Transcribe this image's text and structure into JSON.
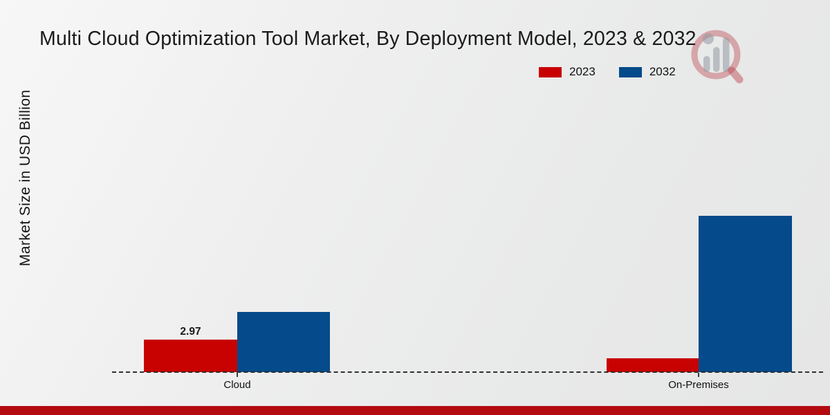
{
  "title": "Multi Cloud Optimization Tool Market, By Deployment Model, 2023 & 2032",
  "y_axis_label": "Market Size in USD Billion",
  "chart_data": {
    "type": "bar",
    "title": "Multi Cloud Optimization Tool Market, By Deployment Model, 2023 & 2032",
    "categories": [
      "Cloud",
      "On-Premises"
    ],
    "series": [
      {
        "name": "2023",
        "color": "#c80101",
        "values": [
          2.97,
          1.25
        ]
      },
      {
        "name": "2032",
        "color": "#054a8a",
        "values": [
          5.5,
          14.3
        ]
      }
    ],
    "ylabel": "Market Size in USD Billion",
    "xlabel": "",
    "ylim": [
      0,
      15
    ],
    "grid": "off",
    "baseline_style": "dashed",
    "legend_position": "top-right",
    "data_labels": [
      {
        "series": "2023",
        "category": "Cloud",
        "text": "2.97"
      }
    ]
  },
  "colors": {
    "bar_2023": "#c80101",
    "bar_2032": "#054a8a",
    "footer_strip": "#b30b10",
    "background": "#ebebeb",
    "baseline": "#2e2e2e"
  },
  "watermark_icon": "magnifier-bar-chart-logo"
}
